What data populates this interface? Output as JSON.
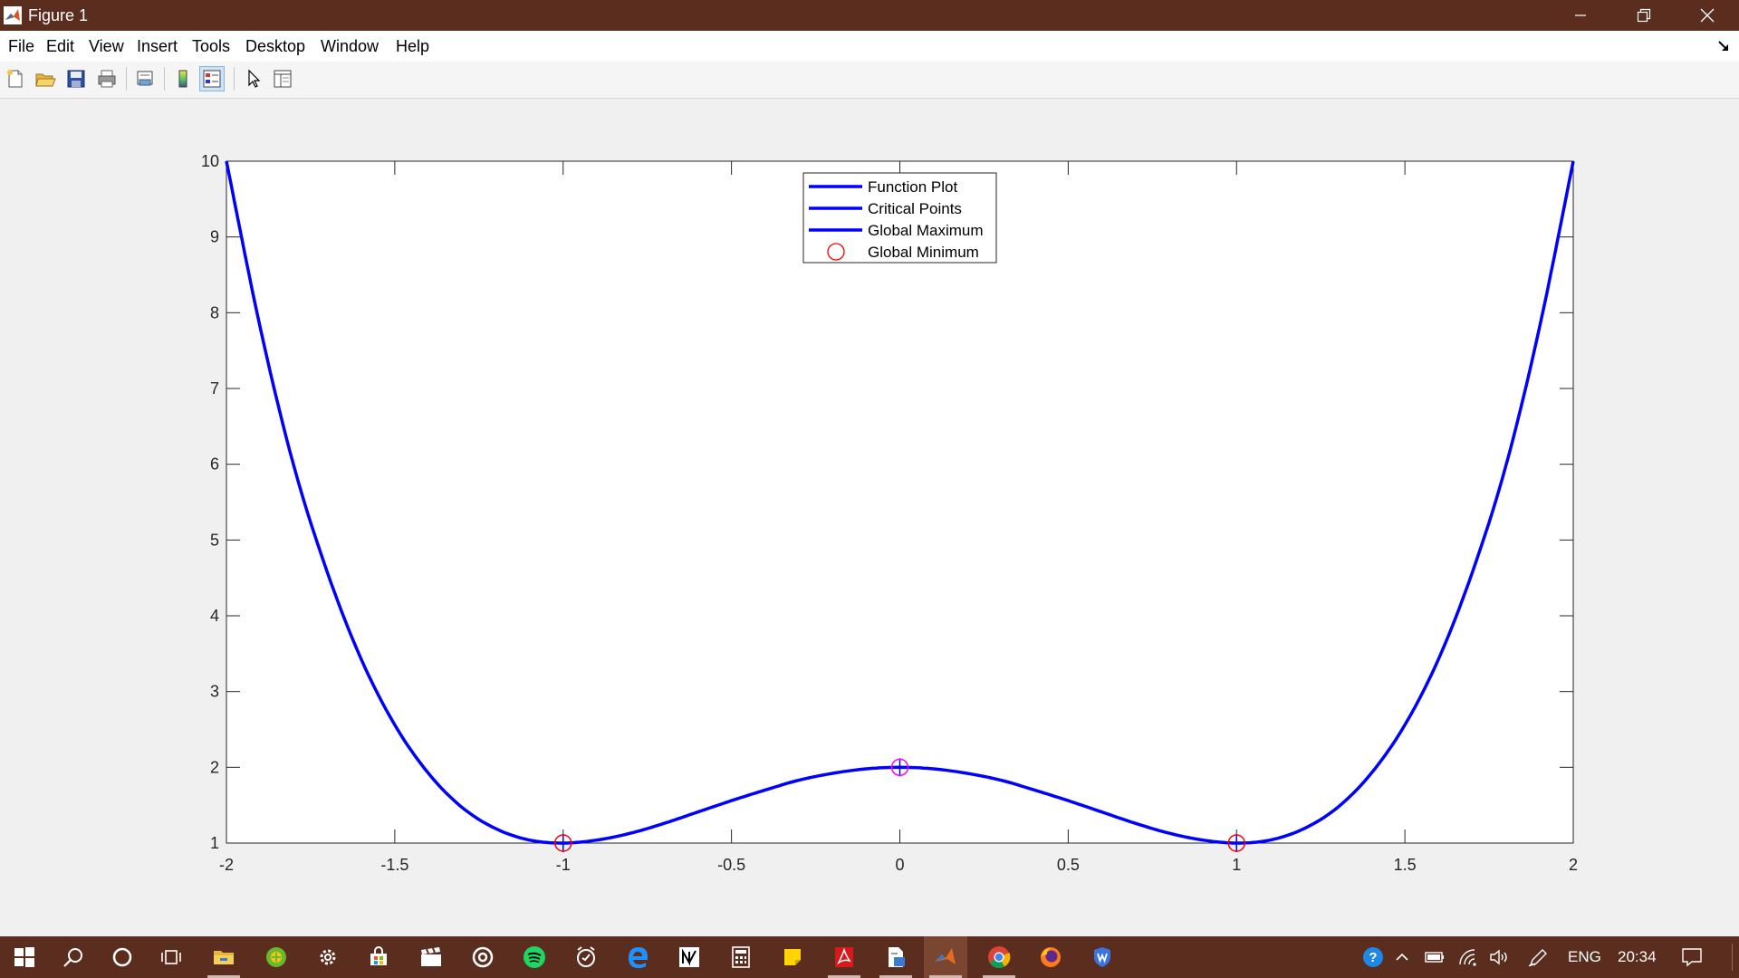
{
  "window": {
    "title": "Figure 1"
  },
  "menu": {
    "items": [
      "File",
      "Edit",
      "View",
      "Insert",
      "Tools",
      "Desktop",
      "Window",
      "Help"
    ]
  },
  "toolbar": {
    "buttons": [
      "new-figure-icon",
      "open-file-icon",
      "save-icon",
      "print-icon",
      "print-preview-icon",
      "colorbar-icon",
      "legend-icon",
      "pointer-icon",
      "property-inspector-icon"
    ]
  },
  "chart_data": {
    "type": "line",
    "title": "",
    "xlabel": "",
    "ylabel": "",
    "xlim": [
      -2,
      2
    ],
    "ylim": [
      1,
      10
    ],
    "xticks": [
      -2,
      -1.5,
      -1,
      -0.5,
      0,
      0.5,
      1,
      1.5,
      2
    ],
    "yticks": [
      1,
      2,
      3,
      4,
      5,
      6,
      7,
      8,
      9,
      10
    ],
    "xtick_labels": [
      "-2",
      "-1.5",
      "-1",
      "-0.5",
      "0",
      "0.5",
      "1",
      "1.5",
      "2"
    ],
    "ytick_labels": [
      "1",
      "2",
      "3",
      "4",
      "5",
      "6",
      "7",
      "8",
      "9",
      "10"
    ],
    "grid": false,
    "legend_position": "top-center",
    "legend": [
      {
        "name": "Function Plot",
        "style": "line",
        "color": "#0000ff"
      },
      {
        "name": "Critical Points",
        "style": "line",
        "color": "#0000ff"
      },
      {
        "name": "Global Maximum",
        "style": "line",
        "color": "#0000ff"
      },
      {
        "name": "Global Minimum",
        "style": "circle",
        "color": "#ff0000"
      }
    ],
    "series": [
      {
        "name": "Function Plot",
        "color": "#0000ff",
        "x": [
          -2,
          -1.9,
          -1.8,
          -1.7,
          -1.6,
          -1.5,
          -1.4,
          -1.3,
          -1.2,
          -1.1,
          -1,
          -0.9,
          -0.8,
          -0.7,
          -0.6,
          -0.5,
          -0.4,
          -0.3,
          -0.2,
          -0.1,
          0,
          0.1,
          0.2,
          0.3,
          0.4,
          0.5,
          0.6,
          0.7,
          0.8,
          0.9,
          1,
          1.1,
          1.2,
          1.3,
          1.4,
          1.5,
          1.6,
          1.7,
          1.8,
          1.9,
          2
        ],
        "y": [
          10,
          7.81,
          5.98,
          4.57,
          3.43,
          2.56,
          1.92,
          1.47,
          1.19,
          1.04,
          1,
          1.04,
          1.13,
          1.26,
          1.41,
          1.56,
          1.7,
          1.83,
          1.92,
          1.98,
          2,
          1.98,
          1.92,
          1.83,
          1.7,
          1.56,
          1.41,
          1.26,
          1.13,
          1.04,
          1,
          1.04,
          1.19,
          1.47,
          1.92,
          2.56,
          3.43,
          4.57,
          5.98,
          7.81,
          10
        ]
      }
    ],
    "markers": [
      {
        "name": "critical-point",
        "x": -1,
        "y": 1,
        "style": "plus",
        "color": "#0000ff"
      },
      {
        "name": "critical-point",
        "x": 0,
        "y": 2,
        "style": "plus",
        "color": "#0000ff"
      },
      {
        "name": "critical-point",
        "x": 1,
        "y": 1,
        "style": "plus",
        "color": "#0000ff"
      },
      {
        "name": "global-maximum",
        "x": 0,
        "y": 2,
        "style": "circle",
        "color": "#ff00ff"
      },
      {
        "name": "global-minimum",
        "x": -1,
        "y": 1,
        "style": "circle",
        "color": "#ff0000"
      },
      {
        "name": "global-minimum",
        "x": 1,
        "y": 1,
        "style": "circle",
        "color": "#ff0000"
      }
    ]
  },
  "taskbar": {
    "apps": [
      "windows-start-icon",
      "search-icon",
      "cortana-icon",
      "task-view-icon",
      "file-explorer-icon",
      "green-app-icon",
      "settings-icon",
      "store-icon",
      "movies-icon",
      "media-icon",
      "spotify-icon",
      "alarms-icon",
      "edge-icon",
      "notion-icon",
      "calculator-icon",
      "sticky-notes-icon",
      "acrobat-icon",
      "document-app-icon",
      "matlab-icon",
      "chrome-icon",
      "firefox-icon",
      "shield-app-icon"
    ],
    "tray": {
      "language": "ENG",
      "time": "20:34"
    }
  }
}
